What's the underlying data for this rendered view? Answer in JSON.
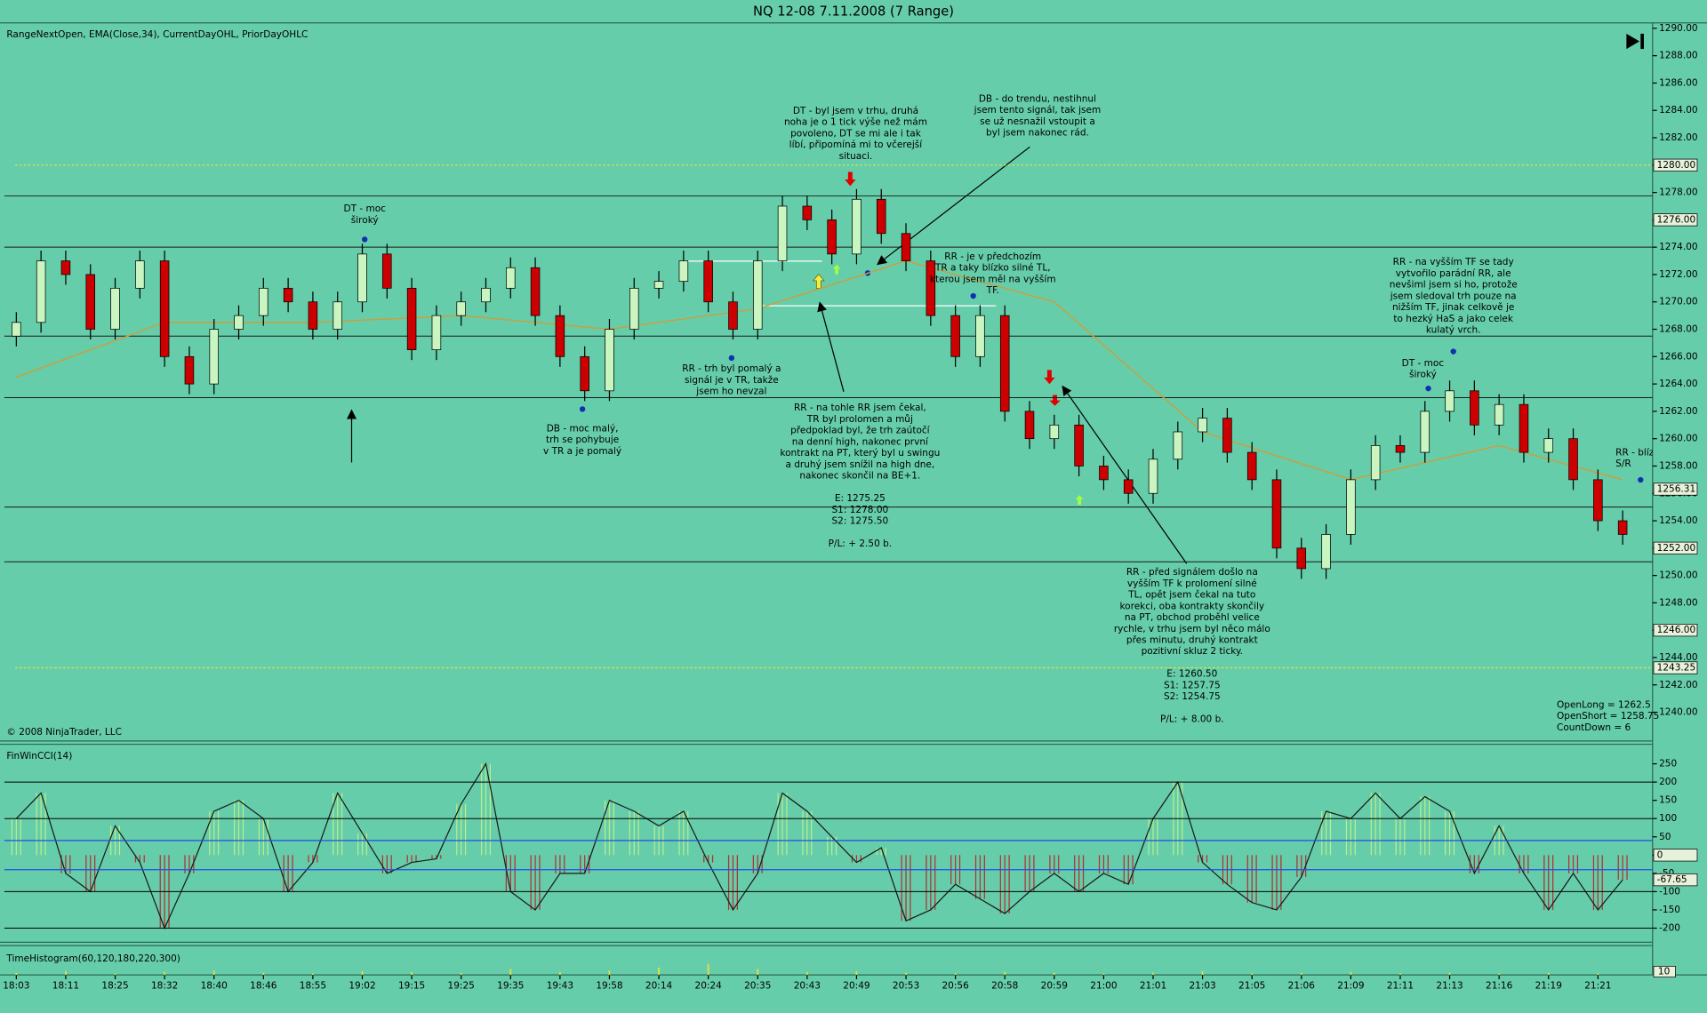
{
  "window": {
    "title": "NQ 12-08  7.11.2008 (7 Range)",
    "indicator_label": "RangeNextOpen, EMA(Close,34), CurrentDayOHL, PriorDayOHLC",
    "copyright": "© 2008 NinjaTrader, LLC"
  },
  "annotations": [
    {
      "blocks": [
        [
          "DT - moc",
          "široký"
        ]
      ]
    },
    {
      "blocks": [
        [
          "DB - moc malý,",
          "trh se pohybuje",
          "v TR a je pomalý"
        ]
      ]
    },
    {
      "blocks": [
        [
          "RR - trh byl pomalý a",
          "signál je v TR, takže",
          "jsem ho nevzal"
        ]
      ]
    },
    {
      "blocks": [
        [
          "DT - byl jsem v trhu, druhá",
          "noha je o 1 tick výše než mám",
          "povoleno, DT se mi ale i tak",
          "líbí, připomíná mi to včerejší",
          "situaci."
        ]
      ]
    },
    {
      "blocks": [
        [
          "DB - do trendu, nestihnul",
          "jsem tento signál, tak jsem",
          "se už nesnažil vstoupit a",
          "byl jsem nakonec rád."
        ]
      ]
    },
    {
      "blocks": [
        [
          "RR - na tohle RR jsem čekal,",
          "TR byl prolomen a můj",
          "předpoklad byl, že trh zaútočí",
          "na denní high, nakonec první",
          "kontrakt na PT, který byl u swingu",
          "a druhý jsem snížil na high dne,",
          "nakonec skončil na BE+1."
        ],
        [
          "E: 1275.25",
          "S1: 1278.00",
          "S2: 1275.50"
        ],
        [
          "P/L: +  2.50 b."
        ]
      ]
    },
    {
      "blocks": [
        [
          "RR - je v předchozím",
          "TR a taky blízko silné TL,",
          "kterou jsem měl na vyšším",
          "TF."
        ]
      ]
    },
    {
      "blocks": [
        [
          "RR - před signálem došlo na",
          "vyšším TF k prolomení silné",
          "TL, opět jsem čekal na tuto",
          "korekci, oba kontrakty skončily",
          "na PT, obchod proběhl velice",
          "rychle, v trhu jsem byl něco málo",
          "přes minutu, druhý kontrakt",
          "pozitivní skluz 2 ticky."
        ],
        [
          "E: 1260.50",
          "S1: 1257.75",
          "S2: 1254.75"
        ],
        [
          "P/L: + 8.00 b."
        ]
      ]
    },
    {
      "blocks": [
        [
          "RR - na vyšším TF se tady",
          "vytvořilo parádní RR, ale",
          "nevšiml jsem si ho, protože",
          "jsem sledoval trh pouze na",
          "nižším TF, jinak celkově je",
          "to hezký HaS a jako celek",
          "kulatý vrch."
        ]
      ]
    },
    {
      "blocks": [
        [
          "DT - moc",
          "široký"
        ]
      ]
    },
    {
      "blocks": [
        [
          "RR - blíz",
          "S/R"
        ]
      ]
    },
    {
      "blocks": [
        [
          "OpenLong = 1262.5",
          "OpenShort = 1258.75",
          "CountDown = 6"
        ]
      ]
    }
  ],
  "chart_data": [
    {
      "type": "candlestick",
      "open": [
        1267.5,
        1268.5,
        1273,
        1272,
        1268,
        1271,
        1273,
        1266,
        1264,
        1268,
        1269,
        1271,
        1270,
        1268,
        1270,
        1273.5,
        1271,
        1266.5,
        1269,
        1270,
        1271,
        1272.5,
        1269,
        1266,
        1263.5,
        1268,
        1271,
        1271.5,
        1273,
        1270,
        1268,
        1273,
        1277,
        1276,
        1273.5,
        1277.5,
        1275,
        1273,
        1269,
        1266,
        1269,
        1262,
        1260,
        1261,
        1258,
        1257,
        1256,
        1258.5,
        1260.5,
        1261.5,
        1259,
        1257,
        1252,
        1250.5,
        1253,
        1257,
        1259.5,
        1259,
        1262,
        1263.5,
        1261,
        1262.5,
        1259,
        1260,
        1257,
        1254
      ],
      "high": [
        1269.25,
        1273.75,
        1273.75,
        1272.75,
        1271.75,
        1273.75,
        1273.75,
        1266.75,
        1268.75,
        1269.75,
        1271.75,
        1271.75,
        1270.75,
        1270.75,
        1274.25,
        1274.25,
        1271.75,
        1269.75,
        1270.75,
        1271.75,
        1273.25,
        1273.25,
        1269.75,
        1266.75,
        1268.75,
        1271.75,
        1272.25,
        1273.75,
        1273.75,
        1270.75,
        1273.75,
        1277.75,
        1277.75,
        1276.75,
        1278.25,
        1278.25,
        1275.75,
        1273.75,
        1269.75,
        1269.75,
        1269.75,
        1262.75,
        1261.75,
        1261.75,
        1258.75,
        1257.75,
        1259.25,
        1261.25,
        1262.25,
        1262.25,
        1259.75,
        1257.75,
        1252.75,
        1253.75,
        1257.75,
        1260.25,
        1260.25,
        1262.75,
        1264.25,
        1264.25,
        1263.25,
        1263.25,
        1260.75,
        1260.75,
        1257.75,
        1254.75
      ],
      "low": [
        1266.75,
        1267.75,
        1271.25,
        1267.25,
        1267.25,
        1270.25,
        1265.25,
        1263.25,
        1263.25,
        1267.25,
        1268.25,
        1269.25,
        1267.25,
        1267.25,
        1269.25,
        1270.25,
        1265.75,
        1265.75,
        1268.25,
        1269.25,
        1270.25,
        1268.25,
        1265.25,
        1262.75,
        1262.75,
        1267.25,
        1270.25,
        1270.75,
        1269.25,
        1267.25,
        1267.25,
        1272.25,
        1275.25,
        1272.75,
        1272.75,
        1274.25,
        1272.25,
        1268.25,
        1265.25,
        1265.25,
        1261.25,
        1259.25,
        1259.25,
        1257.25,
        1256.25,
        1255.25,
        1255.25,
        1257.75,
        1259.75,
        1258.25,
        1256.25,
        1251.25,
        1249.75,
        1249.75,
        1252.25,
        1256.25,
        1258.25,
        1258.25,
        1261.25,
        1260.25,
        1260.25,
        1258.25,
        1258.25,
        1256.25,
        1253.25,
        1252.25
      ],
      "close": [
        1268.5,
        1273,
        1272,
        1268,
        1271,
        1273,
        1266,
        1264,
        1268,
        1269,
        1271,
        1270,
        1268,
        1270,
        1273.5,
        1271,
        1266.5,
        1269,
        1270,
        1271,
        1272.5,
        1269,
        1266,
        1263.5,
        1268,
        1271,
        1271.5,
        1273,
        1270,
        1268,
        1273,
        1277,
        1276,
        1273.5,
        1277.5,
        1275,
        1273,
        1269,
        1266,
        1269,
        1262,
        1260,
        1261,
        1258,
        1257,
        1256,
        1258.5,
        1260.5,
        1261.5,
        1259,
        1257,
        1252,
        1250.5,
        1253,
        1257,
        1259.5,
        1259,
        1262,
        1263.5,
        1261,
        1262.5,
        1259,
        1260,
        1257,
        1254,
        1253
      ],
      "up_color": "#c8f5c0",
      "down_color": "#cc0000",
      "xlim": [
        -0.66,
        66.21
      ],
      "ylim": [
        1237.9,
        1290.4
      ],
      "xticks": [
        {
          "value": 0,
          "label": "18:03"
        },
        {
          "value": 2,
          "label": "18:11"
        },
        {
          "value": 4,
          "label": "18:25"
        },
        {
          "value": 6,
          "label": "18:32"
        },
        {
          "value": 8,
          "label": "18:40"
        },
        {
          "value": 10,
          "label": "18:46"
        },
        {
          "value": 12,
          "label": "18:55"
        },
        {
          "value": 14,
          "label": "19:02"
        },
        {
          "value": 16,
          "label": "19:15"
        },
        {
          "value": 18,
          "label": "19:25"
        },
        {
          "value": 20,
          "label": "19:35"
        },
        {
          "value": 22,
          "label": "19:43"
        },
        {
          "value": 24,
          "label": "19:58"
        },
        {
          "value": 26,
          "label": "20:14"
        },
        {
          "value": 28,
          "label": "20:24"
        },
        {
          "value": 30,
          "label": "20:35"
        },
        {
          "value": 32,
          "label": "20:43"
        },
        {
          "value": 34,
          "label": "20:49"
        },
        {
          "value": 36,
          "label": "20:53"
        },
        {
          "value": 38,
          "label": "20:56"
        },
        {
          "value": 40,
          "label": "20:58"
        },
        {
          "value": 42,
          "label": "20:59"
        },
        {
          "value": 44,
          "label": "21:00"
        },
        {
          "value": 46,
          "label": "21:01"
        },
        {
          "value": 48,
          "label": "21:03"
        },
        {
          "value": 50,
          "label": "21:05"
        },
        {
          "value": 52,
          "label": "21:06"
        },
        {
          "value": 54,
          "label": "21:09"
        },
        {
          "value": 56,
          "label": "21:11"
        },
        {
          "value": 58,
          "label": "21:13"
        },
        {
          "value": 60,
          "label": "21:16"
        },
        {
          "value": 62,
          "label": "21:19"
        },
        {
          "value": 64,
          "label": "21:21"
        }
      ],
      "yticks": [
        {
          "value": 1290,
          "label": "1290.00"
        },
        {
          "value": 1288,
          "label": "1288.00"
        },
        {
          "value": 1286,
          "label": "1286.00"
        },
        {
          "value": 1284,
          "label": "1284.00"
        },
        {
          "value": 1282,
          "label": "1282.00"
        },
        {
          "value": 1280,
          "label": "1280.00"
        },
        {
          "value": 1278,
          "label": "1278.00"
        },
        {
          "value": 1276,
          "label": "1276.00"
        },
        {
          "value": 1274,
          "label": "1274.00"
        },
        {
          "value": 1272,
          "label": "1272.00"
        },
        {
          "value": 1270,
          "label": "1270.00"
        },
        {
          "value": 1268,
          "label": "1268.00"
        },
        {
          "value": 1266,
          "label": "1266.00"
        },
        {
          "value": 1264,
          "label": "1264.00"
        },
        {
          "value": 1262,
          "label": "1262.00"
        },
        {
          "value": 1260,
          "label": "1260.00"
        },
        {
          "value": 1258,
          "label": "1258.00"
        },
        {
          "value": 1256,
          "label": "1256.00"
        },
        {
          "value": 1254,
          "label": "1254.00"
        },
        {
          "value": 1252,
          "label": "1252.00"
        },
        {
          "value": 1250,
          "label": "1250.00"
        },
        {
          "value": 1248,
          "label": "1248.00"
        },
        {
          "value": 1246,
          "label": "1246.00"
        },
        {
          "value": 1244,
          "label": "1244.00"
        },
        {
          "value": 1242,
          "label": "1242.00"
        },
        {
          "value": 1240,
          "label": "1240.00"
        }
      ],
      "ema": {
        "color": "#c8a040",
        "x": [
          0,
          6,
          12,
          18,
          24,
          30,
          36,
          42,
          48,
          54,
          60,
          65
        ],
        "values": [
          1264.5,
          1268.5,
          1268.5,
          1269,
          1268,
          1269.5,
          1273,
          1270,
          1260.5,
          1257,
          1259.5,
          1257
        ]
      },
      "levels": [
        1277.75,
        1274,
        1267.5,
        1263,
        1255,
        1251
      ],
      "level_color": "#1a1a1a",
      "dashed_levels": [
        1280,
        1243.25
      ],
      "dashed_color": "#e8e830",
      "price_markers": [
        {
          "value": 1280,
          "label": "1280.00"
        },
        {
          "value": 1276,
          "label": "1276.00"
        },
        {
          "value": 1256.31,
          "label": "1256.31"
        },
        {
          "value": 1252,
          "label": "1252.00"
        },
        {
          "value": 1246,
          "label": "1246.00"
        },
        {
          "value": 1243.25,
          "label": "1243.25"
        }
      ]
    },
    {
      "type": "cci",
      "title": "FinWinCCI(14)",
      "values": [
        100,
        170,
        -50,
        -100,
        80,
        -20,
        -200,
        -50,
        120,
        150,
        100,
        -100,
        -20,
        170,
        60,
        -50,
        -20,
        -10,
        140,
        250,
        -100,
        -150,
        -50,
        -50,
        150,
        120,
        80,
        120,
        -20,
        -150,
        -50,
        170,
        120,
        50,
        -20,
        20,
        -180,
        -150,
        -80,
        -120,
        -160,
        -100,
        -50,
        -100,
        -50,
        -80,
        100,
        200,
        -20,
        -80,
        -130,
        -150,
        -60,
        120,
        100,
        170,
        100,
        160,
        120,
        -50,
        80,
        -50,
        -150,
        -50,
        -150,
        -67.65
      ],
      "up_color": "#b8f08a",
      "down_color": "#b03030",
      "ylim": [
        -238.7,
        303.6
      ],
      "yticks": [
        250,
        200,
        150,
        100,
        50,
        0,
        -50,
        -100,
        -150,
        -200
      ],
      "levels": [
        200,
        100,
        -100,
        -200
      ],
      "bands": [
        40,
        -40
      ],
      "band_color": "#2050e0",
      "markers": [
        0,
        -67.65
      ]
    },
    {
      "type": "histogram",
      "title": "TimeHistogram(60,120,180,220,300)",
      "values": [
        3,
        5,
        2,
        4,
        6,
        3,
        2,
        5,
        4,
        3,
        8,
        4,
        6,
        10,
        15,
        8,
        4,
        5,
        3,
        2,
        4,
        3,
        2,
        3,
        5,
        2,
        3,
        4,
        2,
        3,
        2,
        3,
        2
      ],
      "color": "#e0e040",
      "ylim": [
        0,
        40
      ],
      "marker": 10
    }
  ]
}
